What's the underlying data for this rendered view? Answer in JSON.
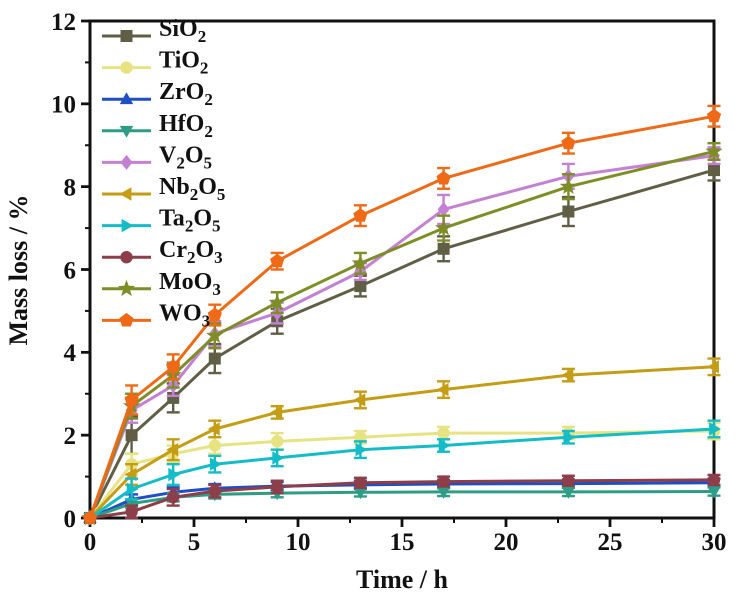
{
  "chart_data": {
    "type": "line",
    "title": "",
    "xlabel": "Time / h",
    "ylabel": "Mass loss / %",
    "xlim": [
      0,
      30
    ],
    "ylim": [
      0,
      12
    ],
    "xticks": [
      0,
      5,
      10,
      15,
      20,
      25,
      30
    ],
    "yticks": [
      0,
      2,
      4,
      6,
      8,
      10,
      12
    ],
    "xticks_minor": [
      2.5,
      7.5,
      12.5,
      17.5,
      22.5,
      27.5
    ],
    "yticks_minor": [
      1,
      3,
      5,
      7,
      9,
      11
    ],
    "grid": false,
    "legend_position": "upper-left",
    "error_bars": true,
    "x": [
      0,
      2,
      4,
      6,
      9,
      13,
      17,
      23,
      30
    ],
    "series": [
      {
        "name": "SiO2",
        "label_parts": [
          [
            "SiO",
            false
          ],
          [
            "2",
            true
          ]
        ],
        "color": "#605f46",
        "marker": "square",
        "values": [
          0,
          2.0,
          2.9,
          3.85,
          4.75,
          5.6,
          6.5,
          7.4,
          8.4
        ],
        "errors": [
          0,
          0.45,
          0.35,
          0.35,
          0.3,
          0.25,
          0.3,
          0.35,
          0.25
        ]
      },
      {
        "name": "TiO2",
        "label_parts": [
          [
            "TiO",
            false
          ],
          [
            "2",
            true
          ]
        ],
        "color": "#e8e382",
        "marker": "circle",
        "values": [
          0,
          1.3,
          1.55,
          1.75,
          1.85,
          1.95,
          2.05,
          2.05,
          2.1
        ],
        "errors": [
          0,
          0.25,
          0.2,
          0.2,
          0.2,
          0.15,
          0.15,
          0.15,
          0.2
        ]
      },
      {
        "name": "ZrO2",
        "label_parts": [
          [
            "ZrO",
            false
          ],
          [
            "2",
            true
          ]
        ],
        "color": "#1e4fc4",
        "marker": "triangle-up",
        "values": [
          0,
          0.45,
          0.62,
          0.72,
          0.77,
          0.8,
          0.82,
          0.83,
          0.85
        ],
        "errors": [
          0,
          0.12,
          0.12,
          0.1,
          0.1,
          0.1,
          0.1,
          0.1,
          0.1
        ]
      },
      {
        "name": "HfO2",
        "label_parts": [
          [
            "HfO",
            false
          ],
          [
            "2",
            true
          ]
        ],
        "color": "#2f9c86",
        "marker": "triangle-down",
        "values": [
          0,
          0.35,
          0.5,
          0.57,
          0.6,
          0.62,
          0.63,
          0.63,
          0.64
        ],
        "errors": [
          0,
          0.1,
          0.1,
          0.1,
          0.1,
          0.1,
          0.1,
          0.1,
          0.1
        ]
      },
      {
        "name": "V2O5",
        "label_parts": [
          [
            "V",
            false
          ],
          [
            "2",
            true
          ],
          [
            "O",
            false
          ],
          [
            "5",
            true
          ]
        ],
        "color": "#c480d2",
        "marker": "diamond",
        "values": [
          0,
          2.6,
          3.2,
          4.45,
          4.95,
          5.95,
          7.45,
          8.25,
          8.75
        ],
        "errors": [
          0,
          0.3,
          0.25,
          0.3,
          0.25,
          0.2,
          0.35,
          0.3,
          0.2
        ]
      },
      {
        "name": "Nb2O5",
        "label_parts": [
          [
            "Nb",
            false
          ],
          [
            "2",
            true
          ],
          [
            "O",
            false
          ],
          [
            "5",
            true
          ]
        ],
        "color": "#c49d14",
        "marker": "triangle-left",
        "values": [
          0,
          1.05,
          1.65,
          2.15,
          2.55,
          2.85,
          3.1,
          3.45,
          3.65
        ],
        "errors": [
          0,
          0.25,
          0.25,
          0.2,
          0.15,
          0.2,
          0.2,
          0.15,
          0.2
        ]
      },
      {
        "name": "Ta2O5",
        "label_parts": [
          [
            "Ta",
            false
          ],
          [
            "2",
            true
          ],
          [
            "O",
            false
          ],
          [
            "5",
            true
          ]
        ],
        "color": "#14bcc8",
        "marker": "triangle-right",
        "values": [
          0,
          0.7,
          1.05,
          1.3,
          1.45,
          1.65,
          1.75,
          1.95,
          2.15
        ],
        "errors": [
          0,
          0.25,
          0.25,
          0.2,
          0.2,
          0.2,
          0.15,
          0.15,
          0.2
        ]
      },
      {
        "name": "Cr2O3",
        "label_parts": [
          [
            "Cr",
            false
          ],
          [
            "2",
            true
          ],
          [
            "O",
            false
          ],
          [
            "3",
            true
          ]
        ],
        "color": "#8e3e49",
        "marker": "circle",
        "values": [
          0,
          0.15,
          0.5,
          0.65,
          0.75,
          0.85,
          0.88,
          0.9,
          0.92
        ],
        "errors": [
          0,
          0.15,
          0.2,
          0.15,
          0.15,
          0.12,
          0.12,
          0.12,
          0.12
        ]
      },
      {
        "name": "MoO3",
        "label_parts": [
          [
            "MoO",
            false
          ],
          [
            "3",
            true
          ]
        ],
        "color": "#7f8d26",
        "marker": "star",
        "values": [
          0,
          2.7,
          3.45,
          4.4,
          5.2,
          6.15,
          7.0,
          8.0,
          8.85
        ],
        "errors": [
          0,
          0.3,
          0.3,
          0.3,
          0.25,
          0.25,
          0.3,
          0.3,
          0.2
        ]
      },
      {
        "name": "WO3",
        "label_parts": [
          [
            "WO",
            false
          ],
          [
            "3",
            true
          ]
        ],
        "color": "#ee6a17",
        "marker": "pentagon",
        "values": [
          0,
          2.85,
          3.65,
          4.9,
          6.2,
          7.3,
          8.2,
          9.05,
          9.7
        ],
        "errors": [
          0,
          0.35,
          0.3,
          0.25,
          0.2,
          0.25,
          0.25,
          0.25,
          0.25
        ]
      }
    ]
  },
  "colors": {
    "axis": "#111111",
    "background": "#ffffff"
  }
}
